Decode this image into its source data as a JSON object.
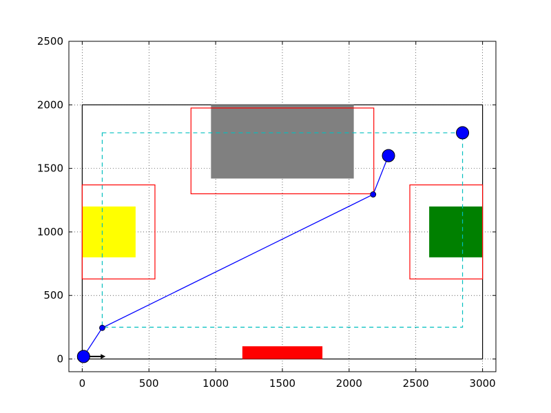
{
  "chart_data": {
    "type": "scatter",
    "title": "",
    "xlabel": "",
    "ylabel": "",
    "xlim": [
      -100,
      3100
    ],
    "ylim": [
      -100,
      2500
    ],
    "grid": true,
    "grid_style": "dotted",
    "x_ticks": [
      "0",
      "500",
      "1000",
      "1500",
      "2000",
      "2500",
      "3000"
    ],
    "y_ticks": [
      "0",
      "500",
      "1000",
      "1500",
      "2000",
      "2500"
    ],
    "x_tick_values": [
      0,
      500,
      1000,
      1500,
      2000,
      2500,
      3000
    ],
    "y_tick_values": [
      0,
      500,
      1000,
      1500,
      2000,
      2500
    ],
    "arena": {
      "x0": 0,
      "y0": 0,
      "x1": 3000,
      "y1": 2000,
      "color": "#000000"
    },
    "filled_rects": [
      {
        "name": "yellow-zone",
        "x0": 0,
        "y0": 800,
        "x1": 400,
        "y1": 1200,
        "color": "#ffff00"
      },
      {
        "name": "green-zone",
        "x0": 2600,
        "y0": 800,
        "x1": 3000,
        "y1": 1200,
        "color": "#008000"
      },
      {
        "name": "gray-zone",
        "x0": 965,
        "y0": 1420,
        "x1": 2035,
        "y1": 2000,
        "color": "#808080"
      },
      {
        "name": "red-zone",
        "x0": 1200,
        "y0": 0,
        "x1": 1800,
        "y1": 100,
        "color": "#ff0000"
      }
    ],
    "outline_rects": [
      {
        "name": "left-boundary",
        "x0": 0,
        "y0": 630,
        "x1": 545,
        "y1": 1370,
        "color": "#ff0000"
      },
      {
        "name": "right-boundary",
        "x0": 2455,
        "y0": 630,
        "x1": 3000,
        "y1": 1370,
        "color": "#ff0000"
      },
      {
        "name": "top-boundary",
        "x0": 815,
        "y0": 1300,
        "x1": 2185,
        "y1": 1975,
        "color": "#ff0000"
      }
    ],
    "dashed_rect": {
      "x0": 150,
      "y0": 250,
      "x1": 2850,
      "y1": 1780,
      "color": "#00bfbf"
    },
    "path": {
      "color": "#0000ff",
      "points": [
        [
          10,
          20
        ],
        [
          150,
          245
        ],
        [
          2180,
          1295
        ],
        [
          2295,
          1600
        ]
      ]
    },
    "path_markers": [
      [
        150,
        245
      ],
      [
        2180,
        1295
      ]
    ],
    "robots": [
      {
        "name": "robot-start",
        "x": 10,
        "y": 20,
        "color": "#0000ff"
      },
      {
        "name": "robot-target",
        "x": 2295,
        "y": 1600,
        "color": "#0000ff"
      },
      {
        "name": "robot-corner",
        "x": 2850,
        "y": 1780,
        "color": "#0000ff"
      }
    ],
    "heading_arrow": {
      "x0": 10,
      "y0": 20,
      "x1": 175,
      "y1": 20,
      "color": "#000000"
    }
  }
}
